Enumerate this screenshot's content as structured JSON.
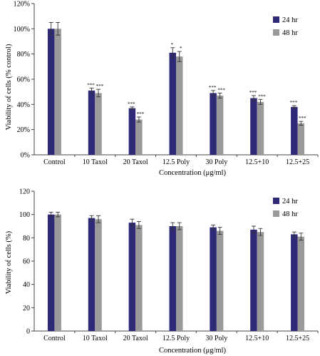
{
  "chart_data": [
    {
      "type": "bar",
      "categories": [
        "Control",
        "10 Taxol",
        "20 Taxol",
        "12.5 Poly",
        "30 Poly",
        "12.5+10",
        "12.5+25"
      ],
      "series": [
        {
          "name": "24 hr",
          "values": [
            100,
            51,
            37,
            81,
            49,
            45,
            38
          ],
          "errors": [
            5,
            2,
            1,
            4,
            2,
            2,
            1
          ],
          "sig": [
            "",
            "***",
            "***",
            "*",
            "***",
            "***",
            "***"
          ]
        },
        {
          "name": "48 hr",
          "values": [
            100,
            49,
            28,
            78,
            47,
            42,
            25
          ],
          "errors": [
            5,
            3,
            2,
            4,
            2,
            2,
            1.5
          ],
          "sig": [
            "",
            "***",
            "***",
            "*",
            "***",
            "***",
            "***"
          ]
        }
      ],
      "yticks": [
        "0%",
        "20%",
        "40%",
        "60%",
        "80%",
        "100%",
        "120%"
      ],
      "ylim": [
        0,
        120
      ],
      "ylabel": "Viability of cells (% control)",
      "xlabel": "Concentration (μg/ml)",
      "legend": "top-right",
      "grid": false
    },
    {
      "type": "bar",
      "categories": [
        "Control",
        "10 Taxol",
        "20 Taxol",
        "12.5 Poly",
        "30 Poly",
        "12.5+10",
        "12.5+25"
      ],
      "series": [
        {
          "name": "24 hr",
          "values": [
            100,
            97,
            93,
            90,
            89,
            87,
            83
          ],
          "errors": [
            2,
            2,
            3,
            3,
            2,
            3,
            2
          ]
        },
        {
          "name": "48 hr",
          "values": [
            100,
            96,
            91,
            90,
            86,
            85,
            81
          ],
          "errors": [
            2,
            3,
            3,
            3,
            3,
            3,
            3
          ]
        }
      ],
      "yticks": [
        "0",
        "20",
        "40",
        "60",
        "80",
        "100",
        "120"
      ],
      "ylim": [
        0,
        120
      ],
      "ylabel": "Viability of cells (%)",
      "xlabel": "Concentration (μg/ml)",
      "legend": "top-right",
      "grid": false
    }
  ],
  "colors": {
    "series_24": "#2e2a78",
    "series_48": "#9a9a9a",
    "axis": "#444444"
  }
}
